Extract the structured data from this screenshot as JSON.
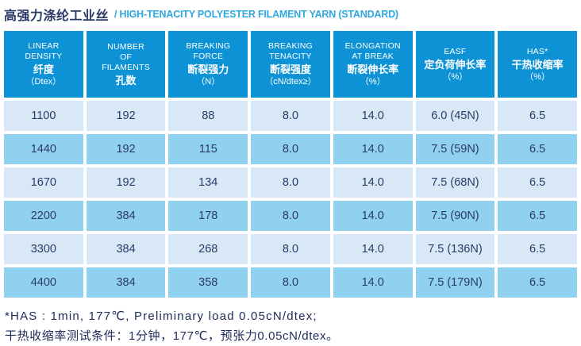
{
  "title": {
    "zh": "高强力涤纶工业丝",
    "en": "/ HIGH-TENACITY POLYESTER FILAMENT YARN (STANDARD)"
  },
  "colors": {
    "header_bg": "#0D93D5",
    "row_light": "#D9E8F6",
    "row_medium": "#90D1F0",
    "data_text": "#2B3A68",
    "title_zh": "#2B3966",
    "title_en": "#2FA8E1",
    "note_text": "#1F2A5A"
  },
  "table": {
    "headers": [
      {
        "key": "linear-density",
        "en": [
          "LINEAR",
          "DENSITY"
        ],
        "zh": "纤度",
        "unit": "（Dtex）"
      },
      {
        "key": "number-of-filaments",
        "en": [
          "NUMBER",
          "OF",
          "FILAMENTS"
        ],
        "zh": "孔数",
        "unit": ""
      },
      {
        "key": "breaking-force",
        "en": [
          "BREAKING",
          "FORCE"
        ],
        "zh": "断裂强力",
        "unit": "（N）"
      },
      {
        "key": "breaking-tenacity",
        "en": [
          "BREAKING",
          "TENACITY"
        ],
        "zh": "断裂强度",
        "unit": "（cN/dtex≥）"
      },
      {
        "key": "elongation-at-break",
        "en": [
          "ELONGATION",
          "AT BREAK"
        ],
        "zh": "断裂伸长率",
        "unit": "（%）"
      },
      {
        "key": "easf",
        "en": [
          "EASF"
        ],
        "zh": "定负荷伸长率",
        "unit": "（%）"
      },
      {
        "key": "has",
        "en": [
          "HAS*"
        ],
        "zh": "干热收缩率",
        "unit": "（%）"
      }
    ],
    "rows": [
      [
        "1100",
        "192",
        "88",
        "8.0",
        "14.0",
        "6.0 (45N)",
        "6.5"
      ],
      [
        "1440",
        "192",
        "115",
        "8.0",
        "14.0",
        "7.5 (59N)",
        "6.5"
      ],
      [
        "1670",
        "192",
        "134",
        "8.0",
        "14.0",
        "7.5 (68N)",
        "6.5"
      ],
      [
        "2200",
        "384",
        "178",
        "8.0",
        "14.0",
        "7.5 (90N)",
        "6.5"
      ],
      [
        "3300",
        "384",
        "268",
        "8.0",
        "14.0",
        "7.5 (136N)",
        "6.5"
      ],
      [
        "4400",
        "384",
        "358",
        "8.0",
        "14.0",
        "7.5 (179N)",
        "6.5"
      ]
    ]
  },
  "notes": {
    "line1": "*HAS : 1min, 177℃, Preliminary load 0.05cN/dtex;",
    "line2": "干热收缩率测试条件：1分钟，177℃，预张力0.05cN/dtex。"
  }
}
